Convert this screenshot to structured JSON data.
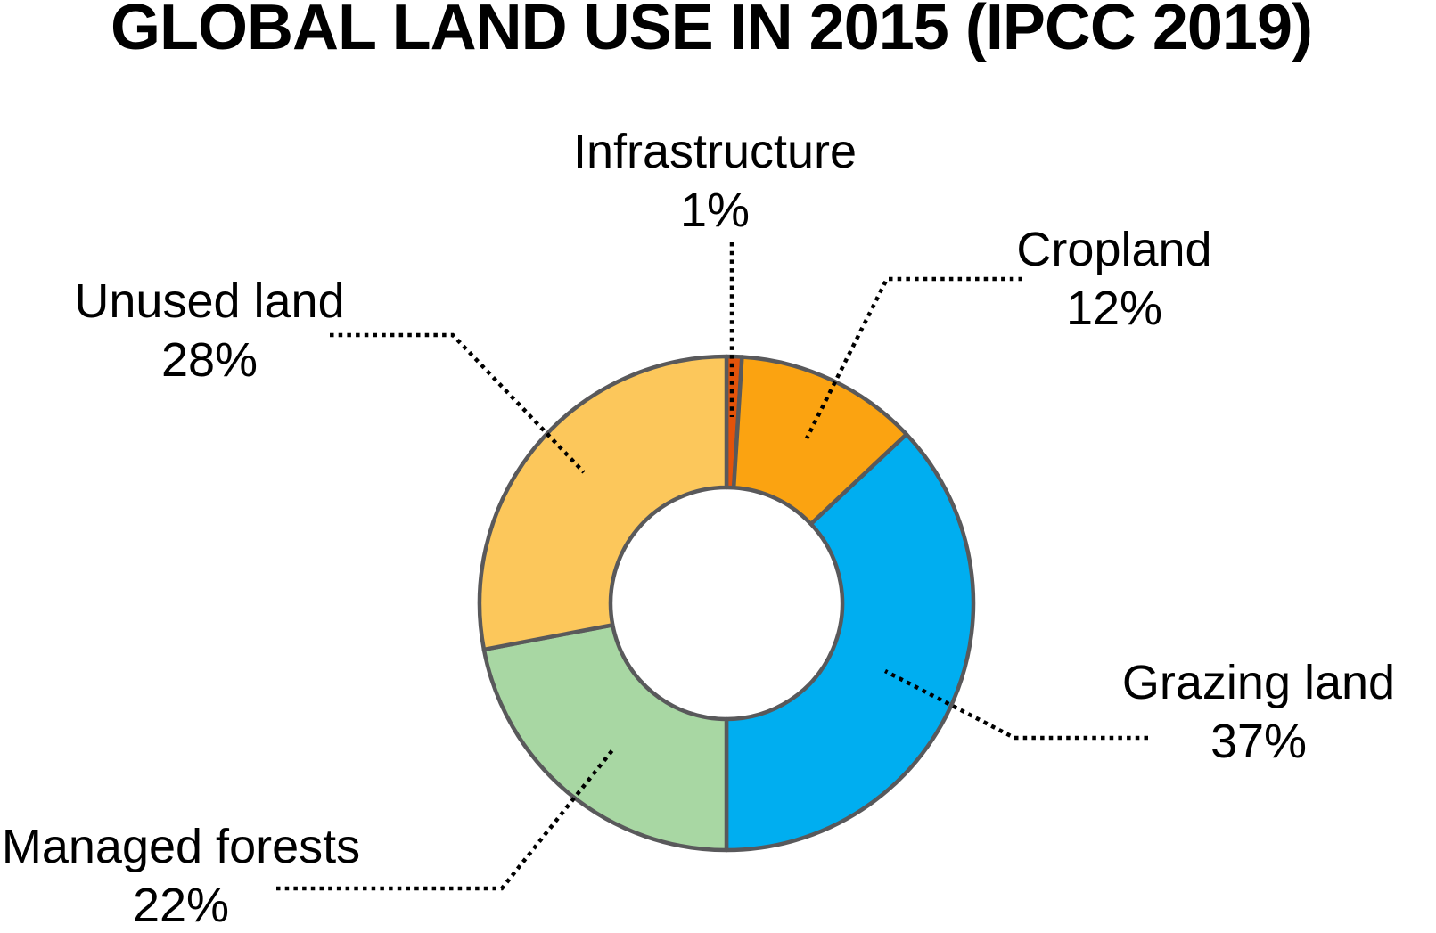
{
  "title": "GLOBAL LAND USE IN 2015 (IPCC 2019)",
  "chart_data": {
    "type": "pie",
    "subtype": "donut",
    "title": "GLOBAL LAND USE IN 2015 (IPCC 2019)",
    "unit": "%",
    "start_angle": "12 o'clock",
    "direction": "clockwise",
    "legend_position": "none (direct labels with dotted leader lines)",
    "segments": [
      {
        "label": "Infrastructure",
        "value": 1,
        "pct_label": "1%",
        "color": "#E3530A"
      },
      {
        "label": "Cropland",
        "value": 12,
        "pct_label": "12%",
        "color": "#FBA311"
      },
      {
        "label": "Grazing land",
        "value": 37,
        "pct_label": "37%",
        "color": "#00AEF0"
      },
      {
        "label": "Managed forests",
        "value": 22,
        "pct_label": "22%",
        "color": "#A8D7A3"
      },
      {
        "label": "Unused land",
        "value": 28,
        "pct_label": "28%",
        "color": "#FCC75B"
      }
    ],
    "wedge_outline_color": "#59595B",
    "leader_line_color": "#000000"
  }
}
